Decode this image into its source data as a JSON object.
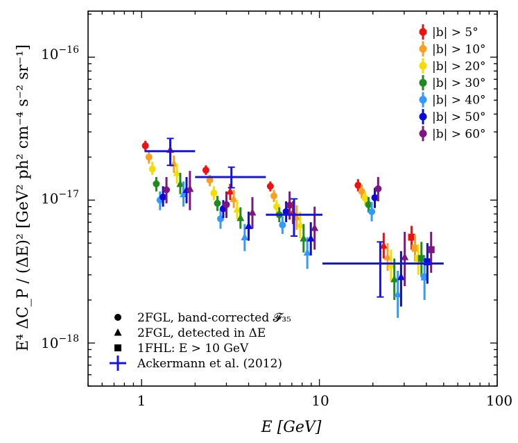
{
  "chart_data": {
    "type": "scatter",
    "xscale": "log",
    "yscale": "log",
    "xlim": [
      0.5,
      100
    ],
    "ylim": [
      5e-19,
      2.1e-16
    ],
    "xlabel": "E [GeV]",
    "ylabel": "E⁴ ΔC_P / (ΔE)² [GeV² ph² cm⁻⁴ s⁻² sr⁻¹]",
    "x_ticks": [
      {
        "value": 1,
        "label": "1"
      },
      {
        "value": 10,
        "label": "10"
      },
      {
        "value": 100,
        "label": "100"
      }
    ],
    "y_ticks": [
      {
        "value": 1e-18,
        "base": "10",
        "exp": "−18"
      },
      {
        "value": 1e-17,
        "base": "10",
        "exp": "−17"
      },
      {
        "value": 1e-16,
        "base": "10",
        "exp": "−16"
      }
    ],
    "latitude_legend": [
      {
        "text": "|b| > 5°",
        "color": "#ee1111"
      },
      {
        "text": "|b| > 10°",
        "color": "#f8a020"
      },
      {
        "text": "|b| > 20°",
        "color": "#f2de00"
      },
      {
        "text": "|b| > 30°",
        "color": "#1f8a1f"
      },
      {
        "text": "|b| > 40°",
        "color": "#3399ff"
      },
      {
        "text": "|b| > 50°",
        "color": "#0a0adf"
      },
      {
        "text": "|b| > 60°",
        "color": "#7d177d"
      }
    ],
    "marker_legend": [
      {
        "marker": "circle",
        "text": "2FGL, band-corrected 𝓕₃₅"
      },
      {
        "marker": "triangle",
        "text": "2FGL, detected in ΔE"
      },
      {
        "marker": "square",
        "text": "1FHL: E > 10 GeV"
      },
      {
        "marker": "cross",
        "text": "Ackermann et al. (2012)"
      }
    ],
    "series": [
      {
        "marker": "circle",
        "points": [
          {
            "color": "#ee1111",
            "x": 1.05,
            "y": 2.4e-17,
            "err": [
              2.2e-17,
              2.6e-17
            ]
          },
          {
            "color": "#f8a020",
            "x": 1.1,
            "y": 2e-17,
            "err": [
              1.8e-17,
              2.2e-17
            ]
          },
          {
            "color": "#f2de00",
            "x": 1.15,
            "y": 1.65e-17,
            "err": [
              1.5e-17,
              1.85e-17
            ]
          },
          {
            "color": "#1f8a1f",
            "x": 1.21,
            "y": 1.3e-17,
            "err": [
              1.15e-17,
              1.45e-17
            ]
          },
          {
            "color": "#3399ff",
            "x": 1.27,
            "y": 1e-17,
            "err": [
              8.5e-18,
              1.15e-17
            ]
          },
          {
            "color": "#0a0adf",
            "x": 1.32,
            "y": 1.05e-17,
            "err": [
              9e-18,
              1.25e-17
            ]
          },
          {
            "color": "#7d177d",
            "x": 1.38,
            "y": 1.18e-17,
            "err": [
              9.5e-18,
              1.45e-17
            ]
          },
          {
            "color": "#ee1111",
            "x": 2.3,
            "y": 1.62e-17,
            "err": [
              1.5e-17,
              1.75e-17
            ]
          },
          {
            "color": "#f8a020",
            "x": 2.42,
            "y": 1.38e-17,
            "err": [
              1.25e-17,
              1.5e-17
            ]
          },
          {
            "color": "#f2de00",
            "x": 2.55,
            "y": 1.12e-17,
            "err": [
              1e-17,
              1.25e-17
            ]
          },
          {
            "color": "#1f8a1f",
            "x": 2.67,
            "y": 9.5e-18,
            "err": [
              8.4e-18,
              1.07e-17
            ]
          },
          {
            "color": "#3399ff",
            "x": 2.78,
            "y": 7.4e-18,
            "err": [
              6.3e-18,
              8.7e-18
            ]
          },
          {
            "color": "#0a0adf",
            "x": 2.88,
            "y": 8.7e-18,
            "err": [
              7.5e-18,
              1e-17
            ]
          },
          {
            "color": "#7d177d",
            "x": 3.0,
            "y": 9.3e-18,
            "err": [
              7.5e-18,
              1.15e-17
            ]
          },
          {
            "color": "#ee1111",
            "x": 5.3,
            "y": 1.25e-17,
            "err": [
              1.15e-17,
              1.35e-17
            ]
          },
          {
            "color": "#f8a020",
            "x": 5.55,
            "y": 1.07e-17,
            "err": [
              9.7e-18,
              1.18e-17
            ]
          },
          {
            "color": "#f2de00",
            "x": 5.75,
            "y": 9e-18,
            "err": [
              8e-18,
              1e-17
            ]
          },
          {
            "color": "#1f8a1f",
            "x": 5.95,
            "y": 7.9e-18,
            "err": [
              7e-18,
              8.9e-18
            ]
          },
          {
            "color": "#3399ff",
            "x": 6.2,
            "y": 6.7e-18,
            "err": [
              5.8e-18,
              7.7e-18
            ]
          },
          {
            "color": "#0a0adf",
            "x": 6.5,
            "y": 8.3e-18,
            "err": [
              7e-18,
              9.8e-18
            ]
          },
          {
            "color": "#7d177d",
            "x": 6.8,
            "y": 9.2e-18,
            "err": [
              7.3e-18,
              1.15e-17
            ]
          },
          {
            "color": "#ee1111",
            "x": 16.5,
            "y": 1.27e-17,
            "err": [
              1.15e-17,
              1.4e-17
            ]
          },
          {
            "color": "#f8a020",
            "x": 17.3,
            "y": 1.15e-17,
            "err": [
              1.03e-17,
              1.28e-17
            ]
          },
          {
            "color": "#f2de00",
            "x": 18.1,
            "y": 1.03e-17,
            "err": [
              9.2e-18,
              1.15e-17
            ]
          },
          {
            "color": "#1f8a1f",
            "x": 18.9,
            "y": 9.3e-18,
            "err": [
              8.2e-18,
              1.05e-17
            ]
          },
          {
            "color": "#3399ff",
            "x": 19.7,
            "y": 8.3e-18,
            "err": [
              7.1e-18,
              9.7e-18
            ]
          },
          {
            "color": "#0a0adf",
            "x": 20.5,
            "y": 1.04e-17,
            "err": [
              8.8e-18,
              1.22e-17
            ]
          },
          {
            "color": "#7d177d",
            "x": 21.4,
            "y": 1.2e-17,
            "err": [
              9.8e-18,
              1.45e-17
            ]
          }
        ]
      },
      {
        "marker": "triangle",
        "points": [
          {
            "color": "#ee1111",
            "x": 1.45,
            "y": 2.25e-17,
            "err": [
              1.9e-17,
              2.6e-17
            ]
          },
          {
            "color": "#f8a020",
            "x": 1.52,
            "y": 1.8e-17,
            "err": [
              1.55e-17,
              2.05e-17
            ]
          },
          {
            "color": "#f2de00",
            "x": 1.58,
            "y": 1.55e-17,
            "err": [
              1.3e-17,
              1.8e-17
            ]
          },
          {
            "color": "#1f8a1f",
            "x": 1.65,
            "y": 1.3e-17,
            "err": [
              1.1e-17,
              1.55e-17
            ]
          },
          {
            "color": "#3399ff",
            "x": 1.72,
            "y": 1.1e-17,
            "err": [
              9e-18,
              1.35e-17
            ]
          },
          {
            "color": "#0a0adf",
            "x": 1.79,
            "y": 1.18e-17,
            "err": [
              9.5e-18,
              1.45e-17
            ]
          },
          {
            "color": "#7d177d",
            "x": 1.87,
            "y": 1.2e-17,
            "err": [
              8.5e-18,
              1.6e-17
            ]
          },
          {
            "color": "#ee1111",
            "x": 3.15,
            "y": 1.15e-17,
            "err": [
              1e-17,
              1.3e-17
            ]
          },
          {
            "color": "#f8a020",
            "x": 3.3,
            "y": 1.02e-17,
            "err": [
              8.8e-18,
              1.18e-17
            ]
          },
          {
            "color": "#f2de00",
            "x": 3.45,
            "y": 8.6e-18,
            "err": [
              7.3e-18,
              1e-17
            ]
          },
          {
            "color": "#1f8a1f",
            "x": 3.6,
            "y": 7.5e-18,
            "err": [
              6.3e-18,
              8.9e-18
            ]
          },
          {
            "color": "#3399ff",
            "x": 3.8,
            "y": 5.5e-18,
            "err": [
              4.4e-18,
              6.8e-18
            ]
          },
          {
            "color": "#0a0adf",
            "x": 4.0,
            "y": 6.6e-18,
            "err": [
              5.2e-18,
              8.3e-18
            ]
          },
          {
            "color": "#7d177d",
            "x": 4.2,
            "y": 8.2e-18,
            "err": [
              6.3e-18,
              1.05e-17
            ]
          },
          {
            "color": "#ee1111",
            "x": 7.1,
            "y": 8.2e-18,
            "err": [
              6.8e-18,
              9.8e-18
            ]
          },
          {
            "color": "#f8a020",
            "x": 7.45,
            "y": 7.6e-18,
            "err": [
              6.2e-18,
              9.2e-18
            ]
          },
          {
            "color": "#f2de00",
            "x": 7.8,
            "y": 6.7e-18,
            "err": [
              5.4e-18,
              8.3e-18
            ]
          },
          {
            "color": "#1f8a1f",
            "x": 8.15,
            "y": 5.4e-18,
            "err": [
              4.3e-18,
              6.8e-18
            ]
          },
          {
            "color": "#3399ff",
            "x": 8.55,
            "y": 4.3e-18,
            "err": [
              3.3e-18,
              5.5e-18
            ]
          },
          {
            "color": "#0a0adf",
            "x": 8.95,
            "y": 5.4e-18,
            "err": [
              4.1e-18,
              7e-18
            ]
          },
          {
            "color": "#7d177d",
            "x": 9.4,
            "y": 6.4e-18,
            "err": [
              4.5e-18,
              9e-18
            ]
          },
          {
            "color": "#ee1111",
            "x": 23.0,
            "y": 4.8e-18,
            "err": [
              3.9e-18,
              5.9e-18
            ]
          },
          {
            "color": "#f8a020",
            "x": 24.2,
            "y": 4e-18,
            "err": [
              3.2e-18,
              5e-18
            ]
          },
          {
            "color": "#f2de00",
            "x": 25.3,
            "y": 3.5e-18,
            "err": [
              2.7e-18,
              4.5e-18
            ]
          },
          {
            "color": "#1f8a1f",
            "x": 26.4,
            "y": 2.8e-18,
            "err": [
              2e-18,
              3.9e-18
            ]
          },
          {
            "color": "#3399ff",
            "x": 27.6,
            "y": 2.2e-18,
            "err": [
              1.5e-18,
              3.2e-18
            ]
          },
          {
            "color": "#0a0adf",
            "x": 28.8,
            "y": 2.9e-18,
            "err": [
              1.8e-18,
              4.4e-18
            ]
          },
          {
            "color": "#7d177d",
            "x": 30.2,
            "y": 4e-18,
            "err": [
              2.5e-18,
              6e-18
            ]
          }
        ]
      },
      {
        "marker": "square",
        "points": [
          {
            "color": "#ee1111",
            "x": 33.0,
            "y": 5.5e-18,
            "err": [
              4.5e-18,
              6.6e-18
            ]
          },
          {
            "color": "#f8a020",
            "x": 34.5,
            "y": 4.6e-18,
            "err": [
              3.7e-18,
              5.7e-18
            ]
          },
          {
            "color": "#f2de00",
            "x": 36.0,
            "y": 3.9e-18,
            "err": [
              3e-18,
              4.9e-18
            ]
          },
          {
            "color": "#1f8a1f",
            "x": 37.5,
            "y": 3.9e-18,
            "err": [
              2.9e-18,
              5.1e-18
            ]
          },
          {
            "color": "#3399ff",
            "x": 39.0,
            "y": 2.9e-18,
            "err": [
              2e-18,
              4e-18
            ]
          },
          {
            "color": "#0a0adf",
            "x": 40.5,
            "y": 3.7e-18,
            "err": [
              2.6e-18,
              5e-18
            ]
          },
          {
            "color": "#7d177d",
            "x": 42.5,
            "y": 4.5e-18,
            "err": [
              3.1e-18,
              6e-18
            ]
          }
        ]
      },
      {
        "marker": "cross",
        "name": "Ackermann et al. (2012)",
        "color": "#1515dd",
        "points": [
          {
            "x": 1.45,
            "xerr": [
              1.04,
              2.0
            ],
            "y": 2.2e-17,
            "err": [
              1.75e-17,
              2.7e-17
            ]
          },
          {
            "x": 3.2,
            "xerr": [
              2.0,
              5.0
            ],
            "y": 1.45e-17,
            "err": [
              1.22e-17,
              1.7e-17
            ]
          },
          {
            "x": 7.2,
            "xerr": [
              5.0,
              10.4
            ],
            "y": 7.9e-18,
            "err": [
              5.6e-18,
              1.02e-17
            ]
          },
          {
            "x": 22.0,
            "xerr": [
              10.4,
              50.0
            ],
            "y": 3.6e-18,
            "err": [
              2.1e-18,
              5.1e-18
            ]
          }
        ]
      }
    ]
  }
}
